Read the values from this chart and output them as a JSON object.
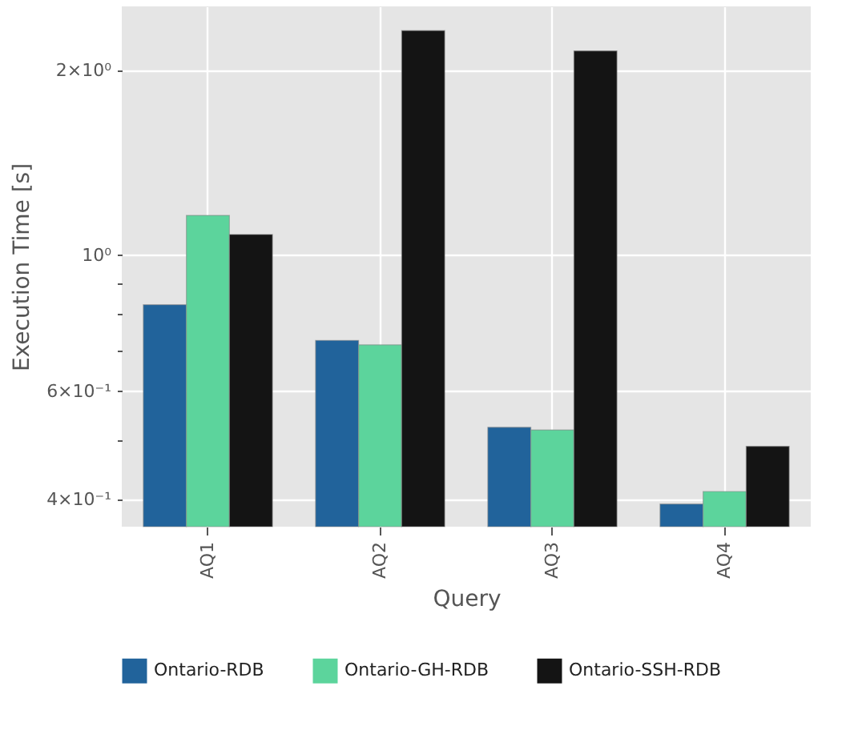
{
  "chart_data": {
    "type": "bar",
    "xlabel": "Query",
    "ylabel": "Execution Time [s]",
    "categories": [
      "AQ1",
      "AQ2",
      "AQ3",
      "AQ4"
    ],
    "series": [
      {
        "name": "Ontario-RDB",
        "color": "#21639b",
        "values": [
          0.83,
          0.726,
          0.524,
          0.393
        ]
      },
      {
        "name": "Ontario-GH-RDB",
        "color": "#5cd49c",
        "values": [
          1.16,
          0.714,
          0.519,
          0.412
        ]
      },
      {
        "name": "Ontario-SSH-RDB",
        "color": "#141414",
        "values": [
          1.08,
          2.32,
          2.15,
          0.488
        ]
      }
    ],
    "log": true,
    "ylim": [
      0.361,
      2.54
    ],
    "yticks": [
      {
        "value": 0.4,
        "label": "4×10⁻¹"
      },
      {
        "value": 0.5,
        "label": null
      },
      {
        "value": 0.6,
        "label": "6×10⁻¹"
      },
      {
        "value": 0.7,
        "label": null
      },
      {
        "value": 0.8,
        "label": null
      },
      {
        "value": 0.9,
        "label": null
      },
      {
        "value": 1,
        "label": "10⁰"
      },
      {
        "value": 2,
        "label": "2×10⁰"
      }
    ],
    "grid": true,
    "legend": "bottom"
  }
}
